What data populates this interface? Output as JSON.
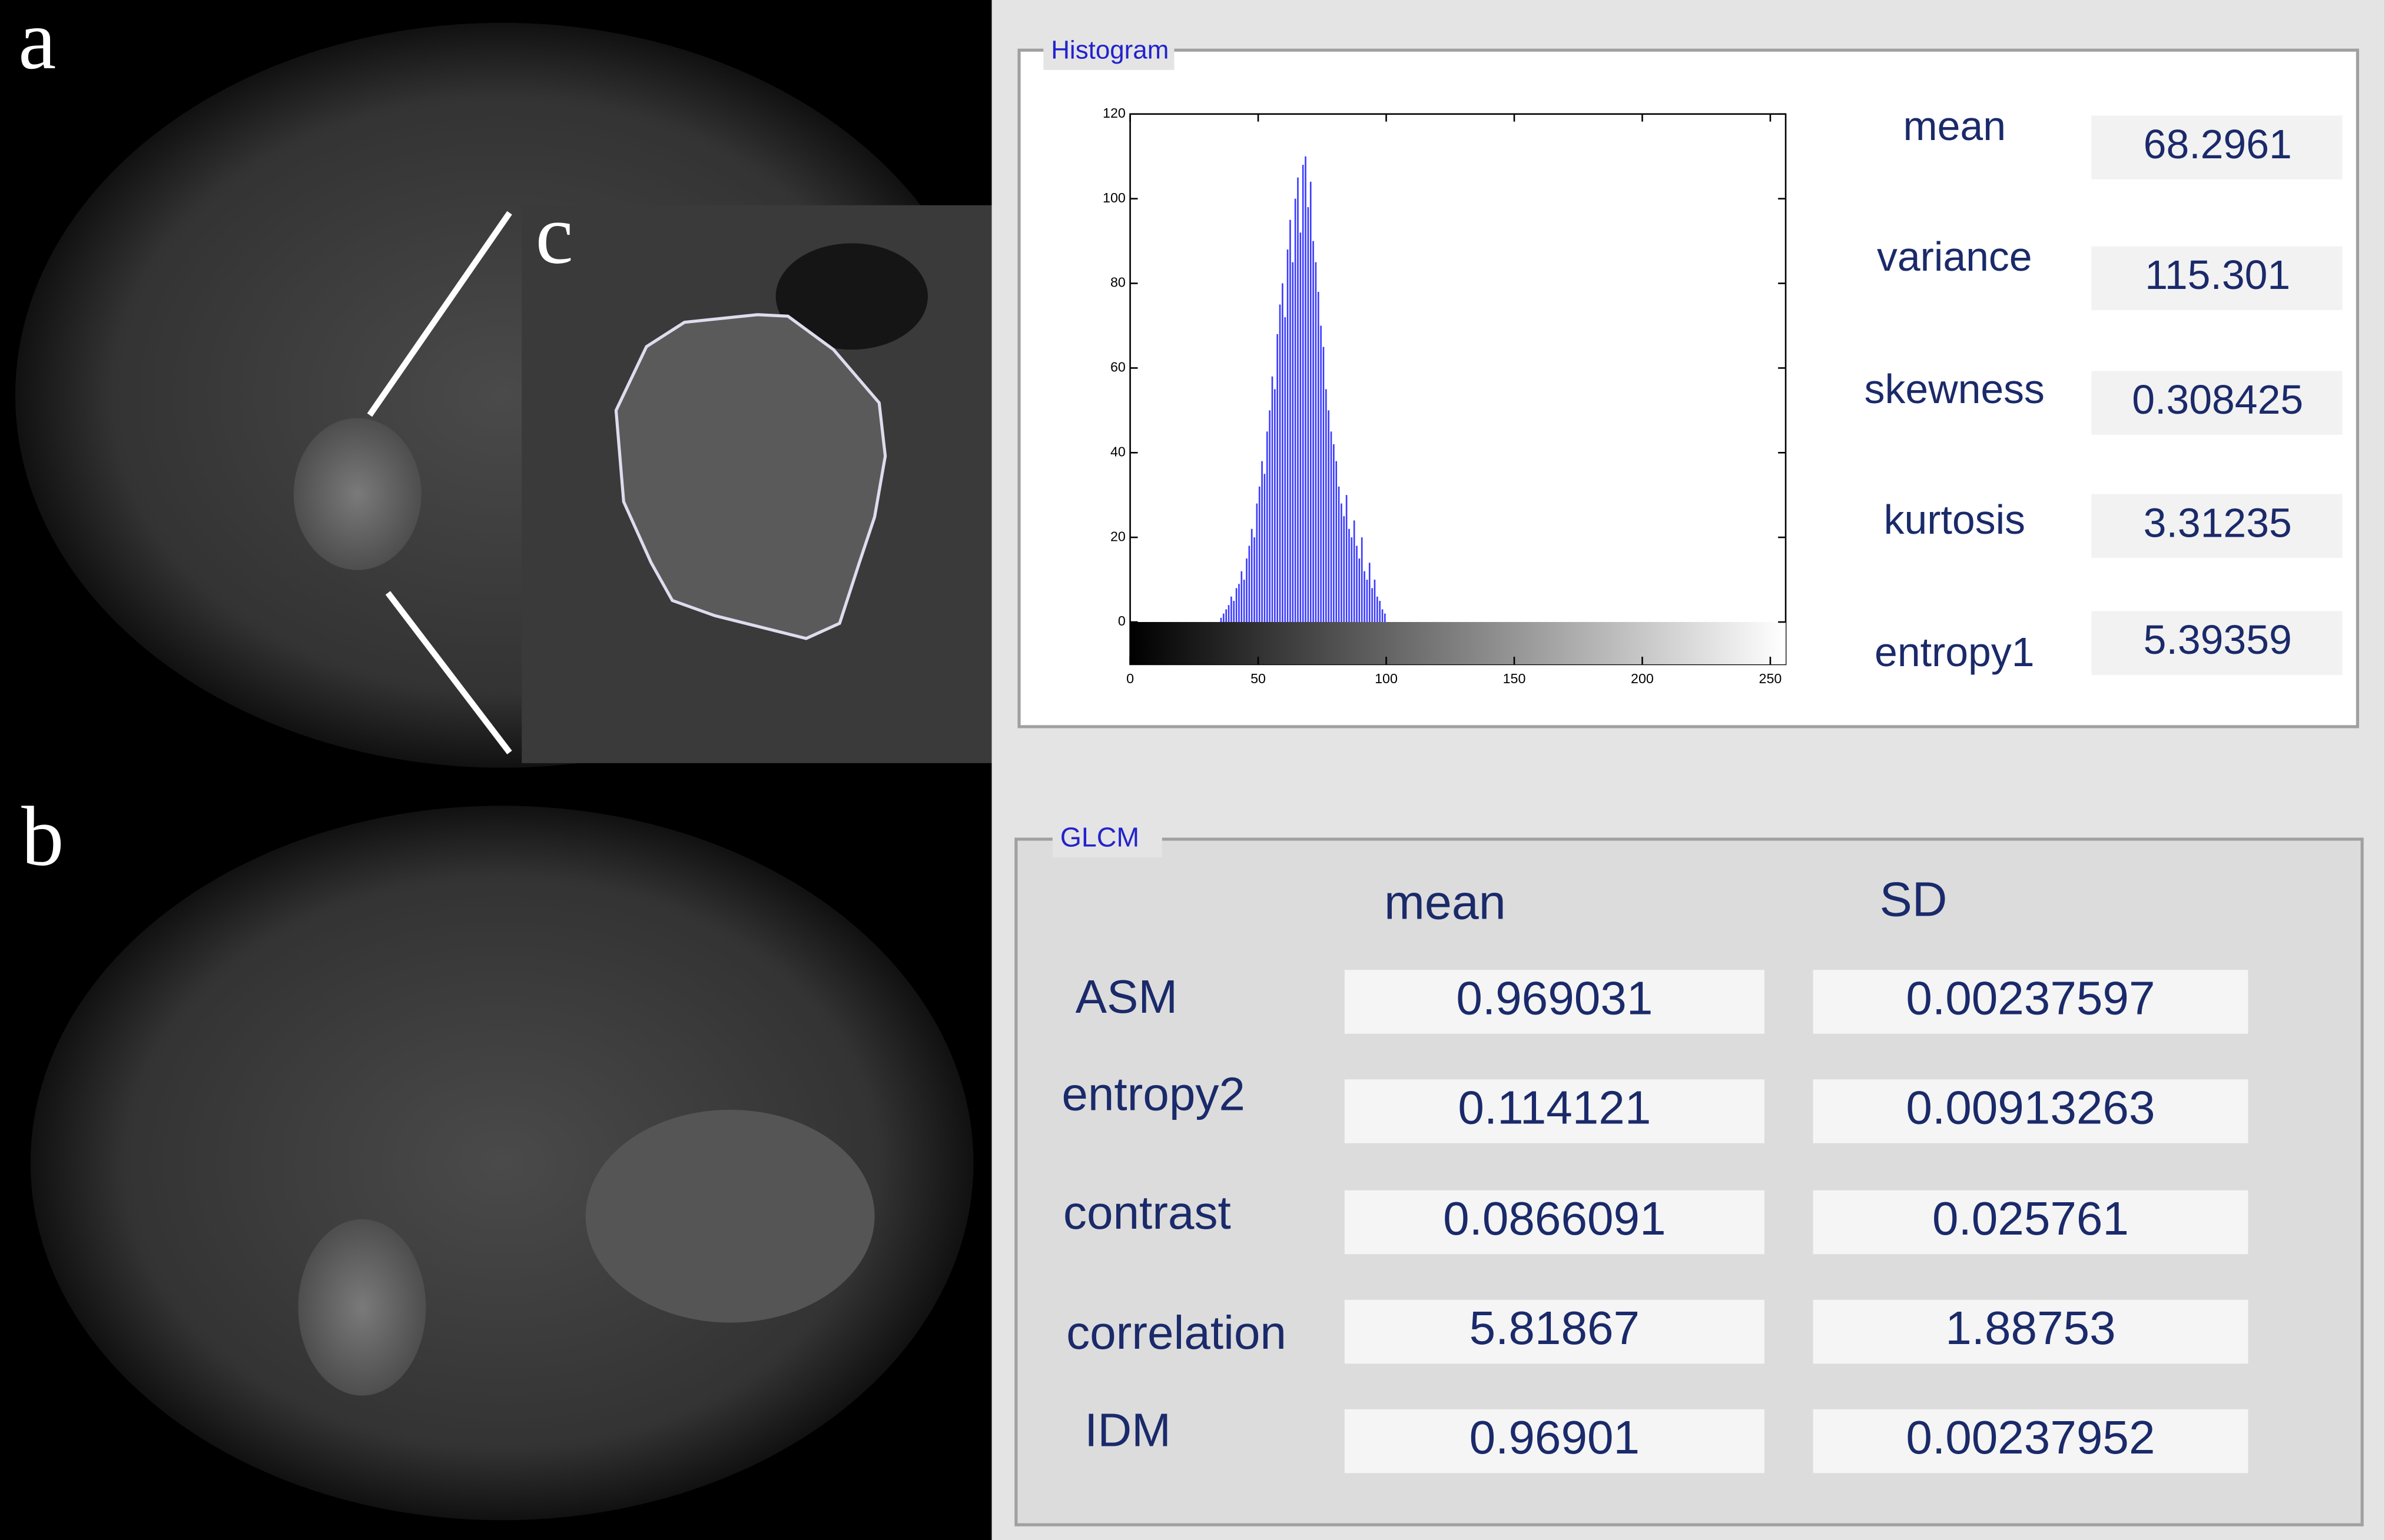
{
  "panels": {
    "a": "a",
    "b": "b",
    "c": "c"
  },
  "histogram": {
    "title": "Histogram",
    "chart": {
      "type": "histogram",
      "bins": [
        35,
        36,
        37,
        38,
        39,
        40,
        41,
        42,
        43,
        44,
        45,
        46,
        47,
        48,
        49,
        50,
        51,
        52,
        53,
        54,
        55,
        56,
        57,
        58,
        59,
        60,
        61,
        62,
        63,
        64,
        65,
        66,
        67,
        68,
        69,
        70,
        71,
        72,
        73,
        74,
        75,
        76,
        77,
        78,
        79,
        80,
        81,
        82,
        83,
        84,
        85,
        86,
        87,
        88,
        89,
        90,
        91,
        92,
        93,
        94,
        95,
        96,
        97,
        98,
        99,
        100
      ],
      "counts": [
        1,
        2,
        3,
        4,
        6,
        5,
        8,
        9,
        12,
        10,
        15,
        18,
        22,
        20,
        28,
        32,
        38,
        35,
        45,
        50,
        58,
        55,
        68,
        75,
        80,
        72,
        88,
        95,
        85,
        100,
        105,
        92,
        108,
        110,
        98,
        104,
        90,
        85,
        78,
        70,
        65,
        55,
        50,
        45,
        42,
        38,
        32,
        28,
        25,
        30,
        22,
        20,
        24,
        18,
        15,
        20,
        12,
        10,
        14,
        8,
        10,
        6,
        5,
        3,
        2
      ],
      "color": "#3a3aff",
      "xlim": [
        0,
        256
      ],
      "ylim": [
        -10,
        120
      ],
      "xticks": [
        0,
        50,
        100,
        150,
        200,
        250
      ],
      "yticks": [
        0,
        20,
        40,
        60,
        80,
        100,
        120
      ]
    },
    "stats": [
      {
        "name": "mean",
        "value": 68.2961
      },
      {
        "name": "variance",
        "value": 115.301
      },
      {
        "name": "skewness",
        "value": 0.308425
      },
      {
        "name": "kurtosis",
        "value": 3.31235
      },
      {
        "name": "entropy1",
        "value": 5.39359
      }
    ]
  },
  "glcm": {
    "title": "GLCM",
    "columns": [
      "mean",
      "SD"
    ],
    "rows": [
      {
        "name": "ASM",
        "mean": 0.969031,
        "sd": 0.00237597
      },
      {
        "name": "entropy2",
        "mean": 0.114121,
        "sd": 0.00913263
      },
      {
        "name": "contrast",
        "mean": 0.0866091,
        "sd": 0.025761
      },
      {
        "name": "correlation",
        "mean": 5.81867,
        "sd": 1.88753
      },
      {
        "name": "IDM",
        "mean": 0.96901,
        "sd": 0.00237952
      }
    ]
  }
}
